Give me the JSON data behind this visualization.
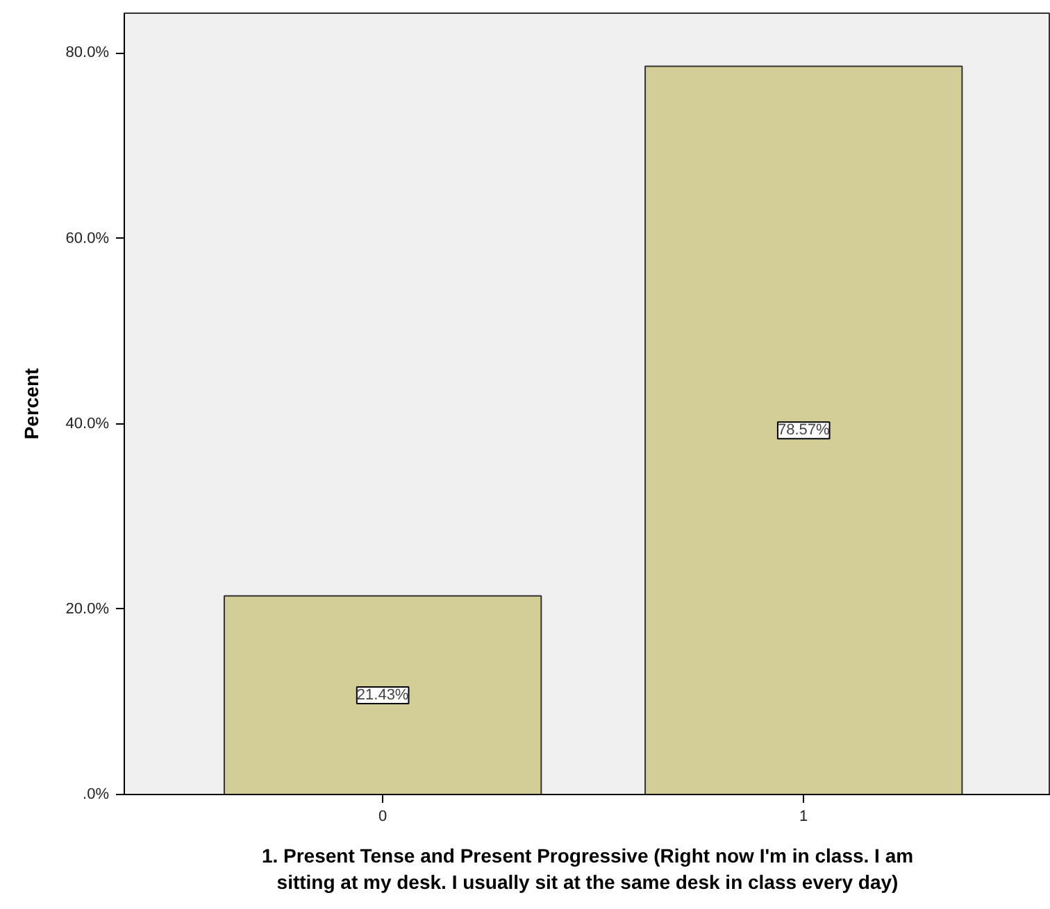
{
  "chart_data": {
    "type": "bar",
    "xlabel": "1. Present Tense and Present Progressive (Right now I'm in class. I am sitting at my desk. I usually sit at the same desk in class every day)",
    "ylabel": "Percent",
    "categories": [
      "0",
      "1"
    ],
    "values": [
      21.43,
      78.57
    ],
    "value_labels": [
      "21.43%",
      "78.57%"
    ],
    "color": "#d3ce97",
    "ylim": [
      0,
      84.3
    ],
    "yticks": [
      {
        "value": 0,
        "label": ".0%"
      },
      {
        "value": 20,
        "label": "20.0%"
      },
      {
        "value": 40,
        "label": "40.0%"
      },
      {
        "value": 60,
        "label": "60.0%"
      },
      {
        "value": 80,
        "label": "80.0%"
      }
    ],
    "grid": false
  }
}
